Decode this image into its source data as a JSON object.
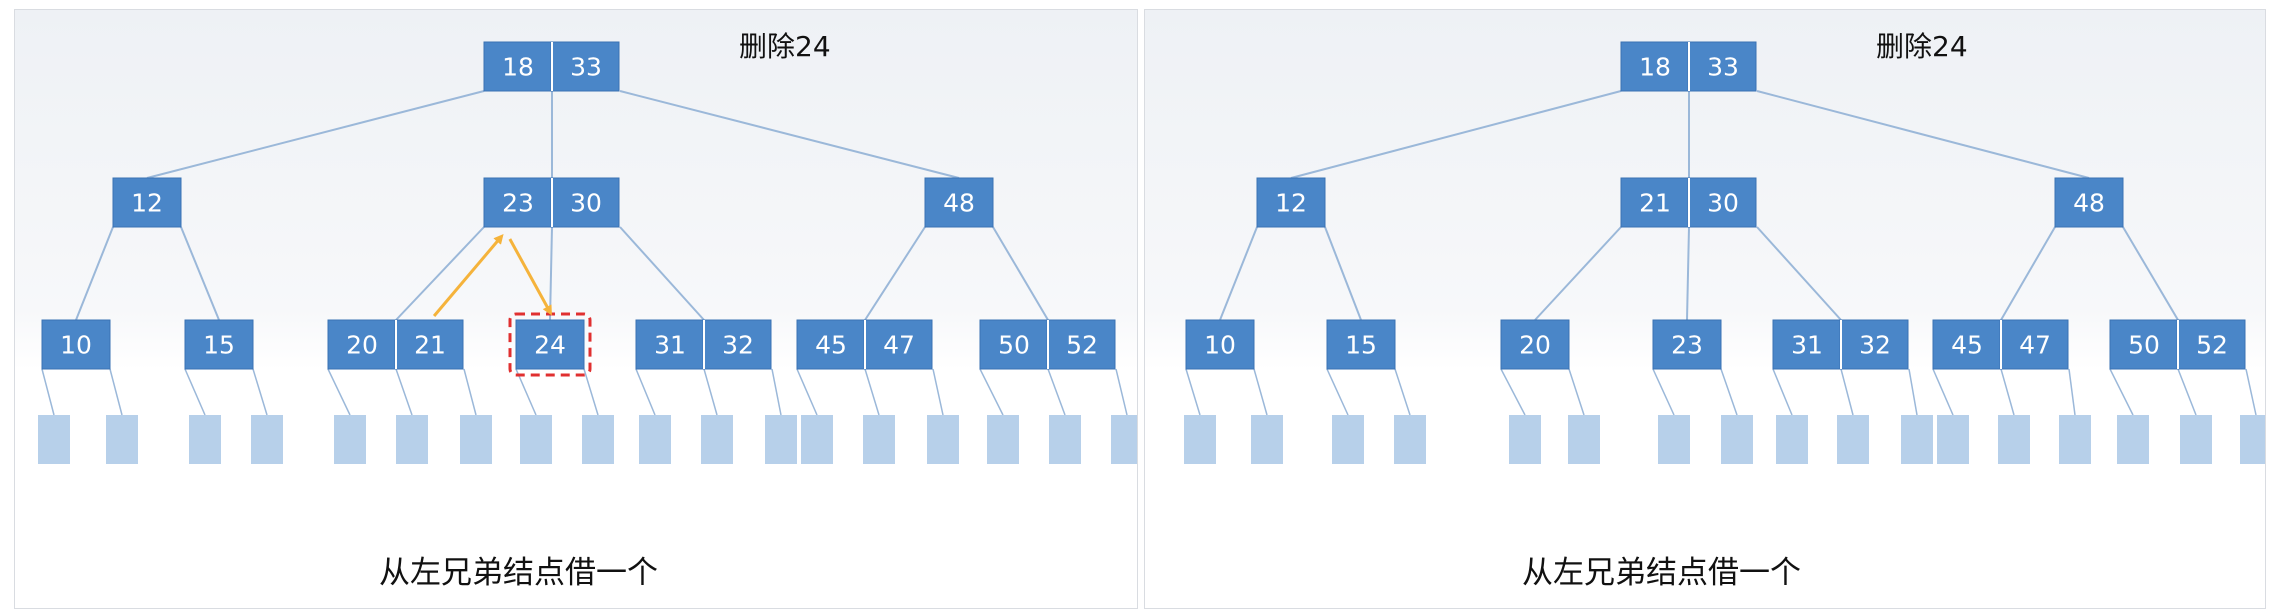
{
  "panels": [
    {
      "id": "left",
      "title": "删除24",
      "caption": "从左兄弟结点借一个",
      "root": [
        "18",
        "33"
      ],
      "internal": [
        [
          "12"
        ],
        [
          "23",
          "30"
        ],
        [
          "48"
        ]
      ],
      "leaves": [
        [
          "10"
        ],
        [
          "15"
        ],
        [
          "20",
          "21"
        ],
        [
          "24"
        ],
        [
          "31",
          "32"
        ],
        [
          "45",
          "47"
        ],
        [
          "50",
          "52"
        ]
      ],
      "deleted_leaf_index": 3,
      "arrows": true
    },
    {
      "id": "right",
      "title": "删除24",
      "caption": "从左兄弟结点借一个",
      "root": [
        "18",
        "33"
      ],
      "internal": [
        [
          "12"
        ],
        [
          "21",
          "30"
        ],
        [
          "48"
        ]
      ],
      "leaves": [
        [
          "10"
        ],
        [
          "15"
        ],
        [
          "20"
        ],
        [
          "23"
        ],
        [
          "31",
          "32"
        ],
        [
          "45",
          "47"
        ],
        [
          "50",
          "52"
        ]
      ],
      "deleted_leaf_index": null,
      "arrows": false
    }
  ],
  "colors": {
    "node_fill": "#4a86c8",
    "node_border": "#3a72b3",
    "edge": "#9bb8d9",
    "placeholder": "#b7d0ea",
    "arrow": "#f5b33b",
    "dashed_highlight": "#e03030"
  }
}
